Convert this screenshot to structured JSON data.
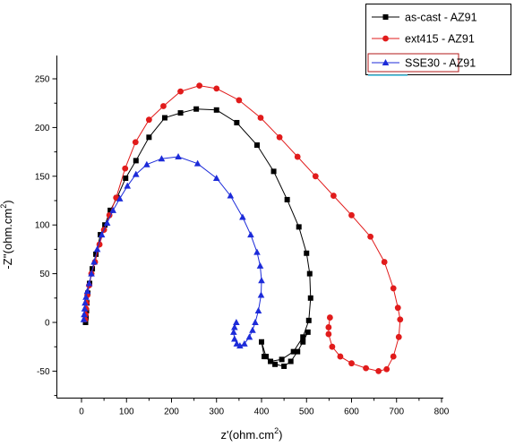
{
  "chart_data": {
    "type": "scatter",
    "title": "",
    "xlabel_main": "z'(ohm.cm",
    "xlabel_sup": "2",
    "xlabel_end": ")",
    "ylabel_main": "-Z''(ohm.cm",
    "ylabel_sup": "2",
    "ylabel_end": ")",
    "xlim": [
      -40,
      800
    ],
    "ylim": [
      -80,
      280
    ],
    "xticks": [
      0,
      100,
      200,
      300,
      400,
      500,
      600,
      700,
      800
    ],
    "yticks": [
      -50,
      0,
      50,
      100,
      150,
      200,
      250
    ],
    "legend_position": "top-right",
    "series": [
      {
        "name": "as-cast - AZ91",
        "color": "#000000",
        "marker": "square",
        "x": [
          9,
          10,
          11,
          12,
          14,
          18,
          24,
          32,
          42,
          52,
          64,
          79,
          98,
          121,
          150,
          185,
          220,
          255,
          300,
          345,
          390,
          427,
          457,
          483,
          500,
          507,
          509,
          505,
          492,
          471,
          445,
          420,
          406,
          400,
          410,
          430,
          450,
          465,
          480,
          492,
          503
        ],
        "y": [
          0,
          5,
          12,
          20,
          30,
          40,
          55,
          70,
          90,
          100,
          115,
          128,
          148,
          166,
          190,
          210,
          215,
          219,
          218,
          205,
          182,
          155,
          126,
          98,
          71,
          50,
          25,
          2,
          -15,
          -30,
          -38,
          -40,
          -35,
          -20,
          -35,
          -43,
          -45,
          -40,
          -30,
          -20,
          -10
        ]
      },
      {
        "name": "ext415 - AZ91",
        "color": "#e11b1b",
        "marker": "circle",
        "x": [
          8,
          9,
          10,
          11,
          13,
          17,
          22,
          30,
          40,
          50,
          62,
          77,
          97,
          120,
          150,
          182,
          220,
          262,
          300,
          350,
          398,
          440,
          480,
          520,
          560,
          600,
          642,
          673,
          693,
          703,
          708,
          705,
          693,
          678,
          660,
          632,
          600,
          575,
          557,
          549,
          549,
          552
        ],
        "y": [
          3,
          8,
          14,
          20,
          28,
          38,
          50,
          62,
          80,
          95,
          110,
          128,
          158,
          185,
          208,
          222,
          237,
          243,
          240,
          228,
          210,
          190,
          170,
          150,
          130,
          110,
          88,
          62,
          35,
          15,
          3,
          -15,
          -35,
          -48,
          -50,
          -47,
          -42,
          -35,
          -25,
          -12,
          -5,
          5
        ]
      },
      {
        "name": "SSE30 - AZ91",
        "color": "#1c2bd9",
        "marker": "triangle",
        "x": [
          5,
          6,
          7,
          8,
          10,
          13,
          17,
          22,
          28,
          35,
          45,
          57,
          70,
          85,
          102,
          121,
          145,
          178,
          215,
          258,
          300,
          331,
          358,
          376,
          390,
          397,
          400,
          399,
          393,
          386,
          380,
          373,
          362,
          352,
          345,
          340,
          338,
          340,
          344
        ],
        "y": [
          3,
          8,
          14,
          20,
          26,
          32,
          40,
          50,
          62,
          75,
          90,
          102,
          115,
          127,
          140,
          152,
          162,
          168,
          170,
          163,
          148,
          130,
          108,
          90,
          72,
          58,
          43,
          28,
          12,
          0,
          -8,
          -15,
          -22,
          -24,
          -22,
          -17,
          -10,
          -5,
          0
        ]
      }
    ]
  }
}
